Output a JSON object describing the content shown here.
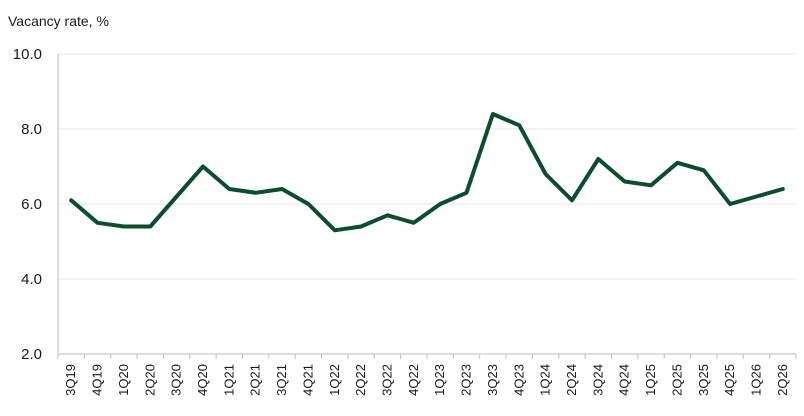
{
  "chart_data": {
    "type": "line",
    "title": "",
    "ylabel": "Vacancy rate, %",
    "xlabel": "",
    "ylim": [
      2.0,
      10.0
    ],
    "yticks": [
      "2.0",
      "4.0",
      "6.0",
      "8.0",
      "10.0"
    ],
    "grid": true,
    "categories": [
      "3Q19",
      "4Q19",
      "1Q20",
      "2Q20",
      "3Q20",
      "4Q20",
      "1Q21",
      "2Q21",
      "3Q21",
      "4Q21",
      "1Q22",
      "2Q22",
      "3Q22",
      "4Q22",
      "1Q23",
      "2Q23",
      "3Q23",
      "4Q23",
      "1Q24",
      "2Q24",
      "3Q24",
      "4Q24",
      "1Q25",
      "2Q25",
      "3Q25",
      "4Q25",
      "1Q26",
      "2Q26"
    ],
    "series": [
      {
        "values": [
          6.1,
          5.5,
          5.4,
          5.4,
          6.2,
          7.0,
          6.4,
          6.3,
          6.4,
          6.0,
          5.3,
          5.4,
          5.7,
          5.5,
          6.0,
          6.3,
          8.4,
          8.1,
          6.8,
          6.1,
          7.2,
          6.6,
          6.5,
          7.1,
          6.9,
          6.0,
          6.2,
          6.4
        ],
        "color": "#0b4d2c"
      }
    ]
  }
}
